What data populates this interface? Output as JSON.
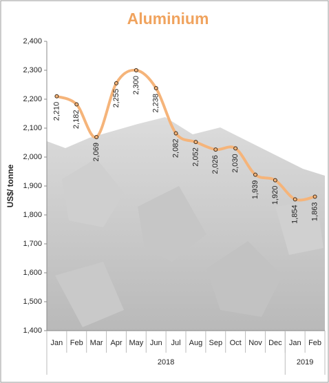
{
  "chart_data": {
    "type": "line",
    "title": "Aluminium",
    "y_label": "US$/ tonne",
    "categories": [
      "Jan",
      "Feb",
      "Mar",
      "Apr",
      "May",
      "Jun",
      "Jul",
      "Aug",
      "Sep",
      "Oct",
      "Nov",
      "Dec",
      "Jan",
      "Feb"
    ],
    "years": [
      "2018",
      "2019"
    ],
    "series": [
      {
        "name": "Aluminium",
        "color": "#f5b47a",
        "values": [
          2210,
          2182,
          2069,
          2255,
          2300,
          2238,
          2082,
          2052,
          2026,
          2030,
          1939,
          1920,
          1854,
          1863
        ],
        "value_labels": [
          "2,210",
          "2,182",
          "2,069",
          "2,255",
          "2,300",
          "2,238",
          "2,082",
          "2,052",
          "2,026",
          "2,030",
          "1,939",
          "1,920",
          "1,854",
          "1,863"
        ]
      }
    ],
    "ylim": [
      1400,
      2400
    ],
    "yticks": [
      {
        "value": 1400,
        "label": "1,400"
      },
      {
        "value": 1500,
        "label": "1,500"
      },
      {
        "value": 1600,
        "label": "1,600"
      },
      {
        "value": 1700,
        "label": "1,700"
      },
      {
        "value": 1800,
        "label": "1,800"
      },
      {
        "value": 1900,
        "label": "1,900"
      },
      {
        "value": 2000,
        "label": "2,000"
      },
      {
        "value": 2100,
        "label": "2,100"
      },
      {
        "value": 2200,
        "label": "2,200"
      },
      {
        "value": 2300,
        "label": "2,300"
      },
      {
        "value": 2400,
        "label": "2,400"
      }
    ],
    "grid": false
  }
}
